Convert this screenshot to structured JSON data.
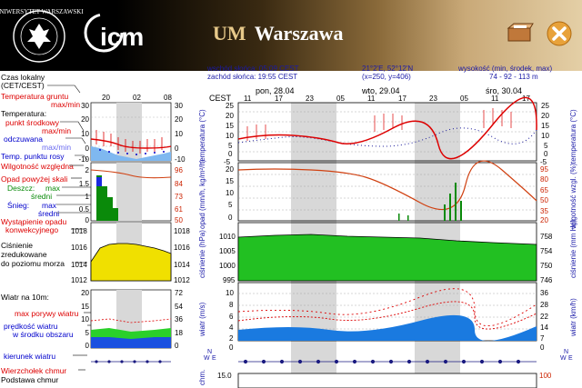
{
  "header": {
    "title_prefix": "UM",
    "title_city": "Warszawa",
    "icm_logo_text": "icm",
    "uni_logo_text": "UNIWERSYTET WARSZAWSKI"
  },
  "info": {
    "sunrise": "wschód słońca: 05:09 CEST",
    "sunset": "zachód słońca: 19:55 CEST",
    "coords": "21°2'E, 52°12'N",
    "grid": "(x=250, y=406)",
    "height_label": "wysokość (min, środek, max)",
    "height_values": "74 - 92 - 113 m",
    "local_time": "Czas lokalny",
    "tz": "(CET/CEST)",
    "cest": "CEST"
  },
  "left_panel": {
    "hours": [
      "20",
      "02",
      "08"
    ],
    "labels": {
      "ground_temp": "Temperatura gruntu",
      "ground_maxmin": "max/min",
      "temperature": "Temperatura:",
      "midpoint": "punkt środkowy",
      "maxmin": "max/min",
      "felt": "odczuwana",
      "felt_maxmin": "max/min",
      "dew": "Temp. punktu rosy",
      "humidity": "Wilgotność względna",
      "precip_above": "Opad powyżej skali",
      "rain": "Deszcz:",
      "rain_max": "max",
      "rain_avg": "średni",
      "snow": "Śnieg:",
      "snow_max": "max",
      "snow_avg": "średni",
      "convective": "Wystąpienie opadu",
      "convective2": "konwekcyjnego",
      "pressure1": "Ciśnienie",
      "pressure2": "zredukowane",
      "pressure3": "do poziomu morza",
      "wind": "Wiatr na 10m:",
      "gust": "max porywy wiatru",
      "wind_speed1": "prędkość wiatru",
      "wind_speed2": "w środku obszaru",
      "wind_dir": "kierunek wiatru",
      "cloud_top": "Wierzchołek chmur",
      "cloud_base": "Podstawa chmur"
    },
    "temp_ticks_left": [
      "30",
      "20",
      "10",
      "0",
      "-10"
    ],
    "temp_ticks_right": [
      "30",
      "20",
      "10",
      "0",
      "-10"
    ],
    "hum_ticks": [
      "96",
      "84",
      "73",
      "61",
      "50"
    ],
    "precip_ticks": [
      "2",
      "1.5",
      "1",
      "0.5",
      "0"
    ],
    "press_ticks_left": [
      "1018",
      "1016",
      "1014",
      "1012"
    ],
    "press_ticks_right": [
      "1018",
      "1016",
      "1014",
      "1012"
    ],
    "wind_ticks_left": [
      "20",
      "15",
      "10",
      "5",
      "0"
    ],
    "wind_ticks_right": [
      "72",
      "54",
      "36",
      "18",
      "0"
    ]
  },
  "main": {
    "days": [
      {
        "label": "pon, 28.04"
      },
      {
        "label": "wto, 29.04"
      },
      {
        "label": "śro, 30.04"
      }
    ],
    "hour_labels": [
      "11",
      "17",
      "23",
      "05",
      "11",
      "17",
      "23",
      "05",
      "11",
      "17"
    ],
    "temp_axis_title": "temperatura (°C)",
    "temp_ticks": [
      "25",
      "20",
      "15",
      "10",
      "5",
      "0",
      "-5"
    ],
    "precip_axis_title": "opad (mm/h, kg/m²/h)",
    "precip_ticks": [
      "20",
      "15",
      "10",
      "5",
      "0"
    ],
    "hum_axis_title": "wilgotność wzgl. (%)",
    "hum_ticks": [
      "95",
      "80",
      "65",
      "50",
      "35",
      "20"
    ],
    "press_axis_title": "ciśnienie (hPa)",
    "press_ticks": [
      "1010",
      "1005",
      "1000",
      "995"
    ],
    "press_mm_title": "ciśnienie (mm Hg)",
    "press_mm_ticks": [
      "758",
      "754",
      "750",
      "746"
    ],
    "wind_axis_title": "wiatr (m/s)",
    "wind_ticks": [
      "10",
      "8",
      "6",
      "4",
      "2",
      "0"
    ],
    "wind_kmh_title": "wiatr (km/h)",
    "wind_kmh_ticks": [
      "36",
      "28",
      "22",
      "14",
      "7",
      "0"
    ],
    "cloud_axis_title": "chm.",
    "cloud_ticks": [
      "15.0"
    ],
    "cloud_right_ticks": [
      "100"
    ],
    "dir_label_n": "N",
    "dir_label_w": "W",
    "dir_label_e": "E"
  }
}
